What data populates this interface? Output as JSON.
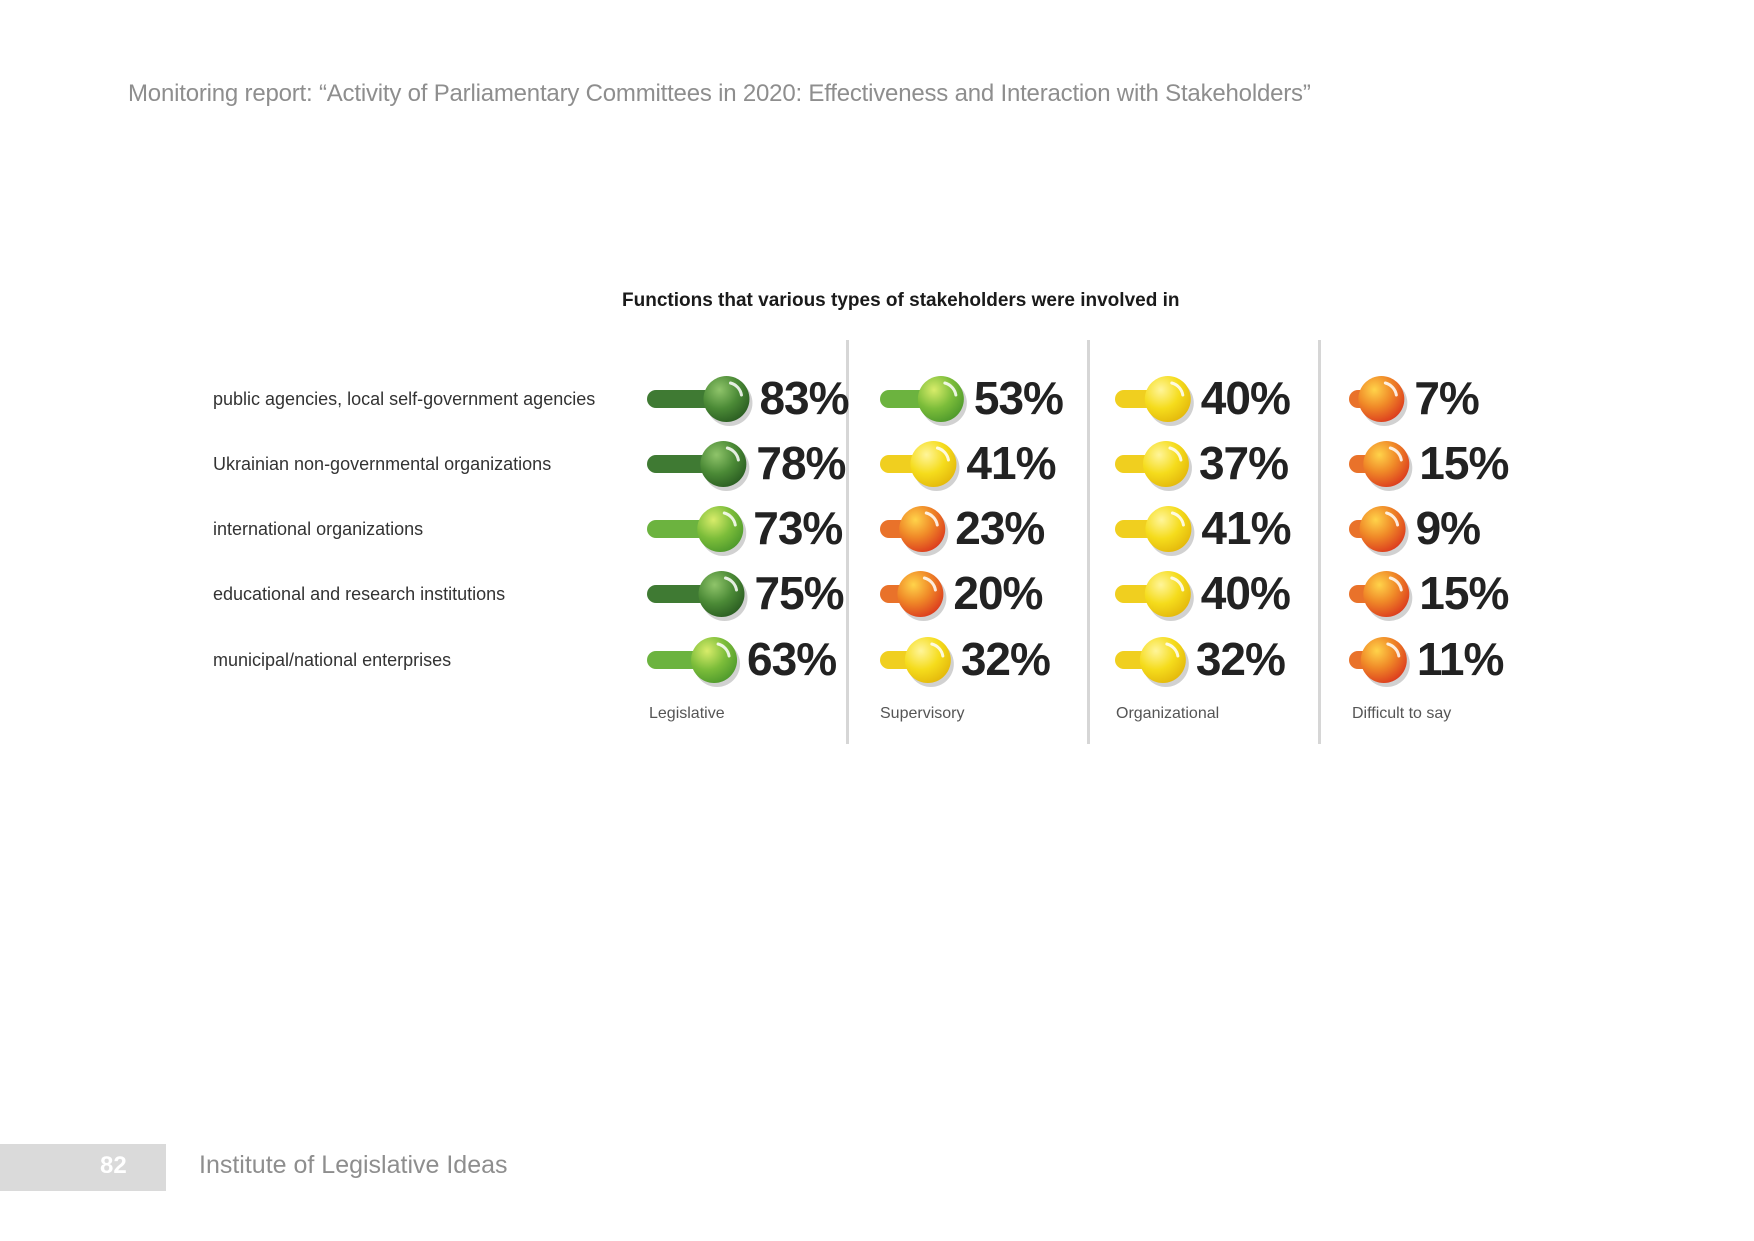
{
  "header": {
    "report_title": "Monitoring report: “Activity of Parliamentary Committees in 2020: Effectiveness and Interaction with Stakeholders”"
  },
  "footer": {
    "page_number": "82",
    "org_name": "Institute of Legislative Ideas"
  },
  "colors": {
    "dark_green": "#3e7d32",
    "green": "#6cb33f",
    "yellow": "#f2d21b",
    "orange_red": "#ea5a24",
    "text": "#222222"
  },
  "chart_data": {
    "type": "table",
    "title": "Functions that various types of stakeholders were involved in",
    "rows": [
      "public agencies, local self-government agencies",
      "Ukrainian non-governmental organizations",
      "international organizations",
      "educational and research institutions",
      "municipal/national enterprises"
    ],
    "columns": [
      "Legislative",
      "Supervisory",
      "Organizational",
      "Difficult to say"
    ],
    "unit": "%",
    "series": [
      {
        "name": "Legislative",
        "values": [
          83,
          78,
          73,
          75,
          63
        ]
      },
      {
        "name": "Supervisory",
        "values": [
          53,
          41,
          23,
          20,
          32
        ]
      },
      {
        "name": "Organizational",
        "values": [
          40,
          37,
          41,
          40,
          32
        ]
      },
      {
        "name": "Difficult to say",
        "values": [
          7,
          15,
          9,
          15,
          11
        ]
      }
    ]
  }
}
